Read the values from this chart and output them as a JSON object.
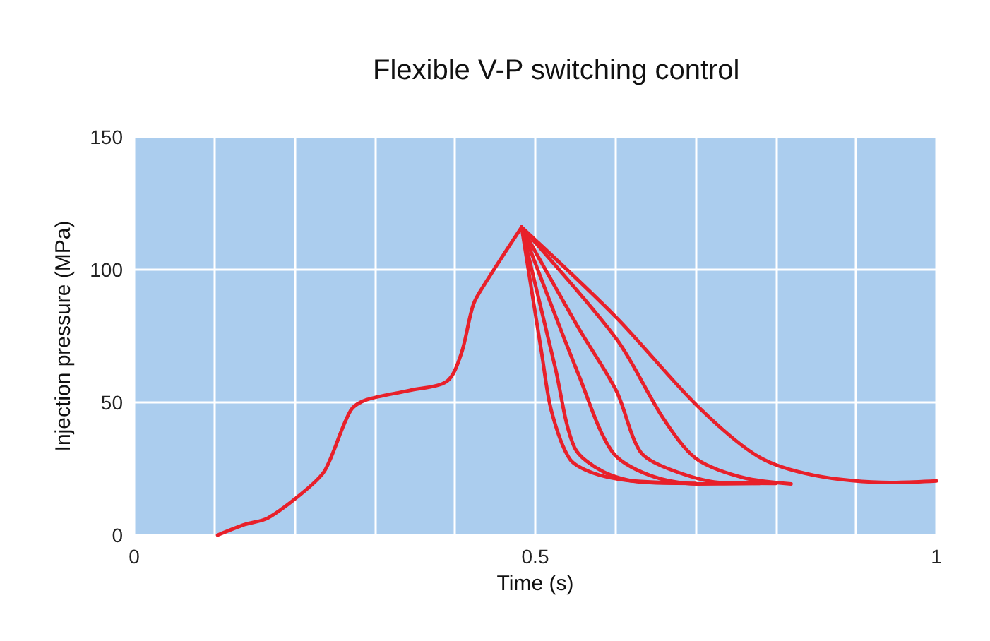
{
  "chart_data": {
    "type": "line",
    "title": "Flexible V-P switching control",
    "xlabel": "Time (s)",
    "ylabel": "Injection pressure (MPa)",
    "xlim": [
      0,
      1
    ],
    "ylim": [
      0,
      150
    ],
    "xticks": [
      0,
      {
        "value": 0.1,
        "label": null
      },
      {
        "value": 0.2,
        "label": null
      },
      {
        "value": 0.3,
        "label": null
      },
      {
        "value": 0.4,
        "label": null
      },
      {
        "value": 0.5,
        "label": "0.5"
      },
      {
        "value": 0.6,
        "label": null
      },
      {
        "value": 0.7,
        "label": null
      },
      {
        "value": 0.8,
        "label": null
      },
      {
        "value": 0.9,
        "label": null
      },
      1
    ],
    "yticks": [
      0,
      50,
      100,
      150
    ],
    "grid": true,
    "marker": "none",
    "line_style": "solid",
    "series": [
      {
        "color": "#e8202a",
        "x": [
          0.104,
          0.138,
          0.167,
          0.214,
          0.238,
          0.27,
          0.29,
          0.343,
          0.39,
          0.408,
          0.423,
          0.44,
          0.483
        ],
        "values": [
          0,
          4,
          6.5,
          17,
          24.5,
          47,
          51,
          54.5,
          58,
          68.6,
          87,
          96,
          116
        ]
      },
      {
        "color": "#e8202a",
        "x": [
          0.483,
          0.601,
          0.701,
          0.778,
          0.848,
          0.942,
          1
        ],
        "values": [
          116,
          82,
          49,
          29.6,
          22.5,
          19.8,
          20.4
        ]
      },
      {
        "color": "#e8202a",
        "x": [
          0.483,
          0.601,
          0.66,
          0.701,
          0.76,
          0.819
        ],
        "values": [
          116,
          74,
          43.8,
          28.7,
          21.6,
          19.3
        ]
      },
      {
        "color": "#e8202a",
        "x": [
          0.483,
          0.555,
          0.601,
          0.631,
          0.666,
          0.731,
          0.8
        ],
        "values": [
          116,
          77.5,
          54.4,
          31.4,
          25,
          19.8,
          19.5
        ]
      },
      {
        "color": "#e8202a",
        "x": [
          0.483,
          0.555,
          0.596,
          0.643,
          0.701,
          0.78
        ],
        "values": [
          116,
          59.7,
          31.4,
          22.5,
          19.3,
          19.5
        ]
      },
      {
        "color": "#e8202a",
        "x": [
          0.483,
          0.525,
          0.549,
          0.584,
          0.631,
          0.7
        ],
        "values": [
          116,
          63,
          33,
          24,
          20,
          19.5
        ]
      },
      {
        "color": "#e8202a",
        "x": [
          0.483,
          0.508,
          0.52,
          0.543,
          0.572,
          0.613,
          0.68
        ],
        "values": [
          116,
          68.6,
          47,
          28.7,
          23.4,
          20.7,
          19.6
        ]
      }
    ]
  }
}
